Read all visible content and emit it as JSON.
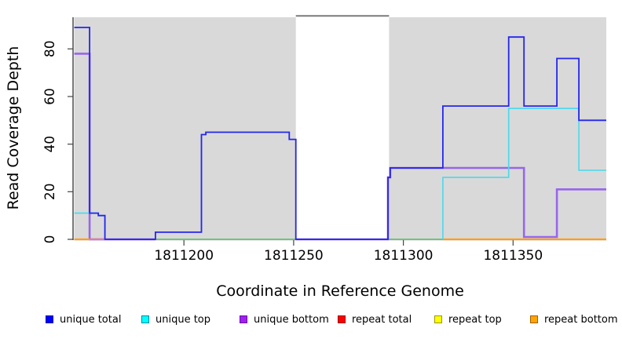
{
  "chart_data": {
    "type": "line",
    "variant": "step-coverage-plot",
    "xlabel": "Coordinate in Reference Genome",
    "ylabel": "Read Coverage Depth",
    "xlim": [
      1811150,
      1811392.5
    ],
    "ylim": [
      0,
      93.3
    ],
    "x_ticks": [
      1811200,
      1811250,
      1811300,
      1811350
    ],
    "y_ticks": [
      0,
      20,
      40,
      60,
      80
    ],
    "grid": false,
    "legend_position": "bottom",
    "background": {
      "plot_fill": "#D9D9D9",
      "page_fill": "#FFFFFF"
    },
    "masked_region": {
      "x_start": 1811251,
      "x_end": 1811293.5,
      "fill": "#FFFFFF",
      "top_edge_color": "#7A7A7A"
    },
    "legend": [
      {
        "label": "unique total",
        "fill": "#0000FF",
        "border": "#0000A0"
      },
      {
        "label": "unique top",
        "fill": "#00FFFF",
        "border": "#00889A"
      },
      {
        "label": "unique bottom",
        "fill": "#A020F0",
        "border": "#6A0DAD"
      },
      {
        "label": "repeat total",
        "fill": "#FF0000",
        "border": "#990000"
      },
      {
        "label": "repeat top",
        "fill": "#FFFF00",
        "border": "#999900"
      },
      {
        "label": "repeat bottom",
        "fill": "#FFA500",
        "border": "#A06000"
      }
    ],
    "series": [
      {
        "name": "zero overlap line",
        "color": "#6FC47E",
        "width": 2,
        "segments": [
          [
            [
              1811187,
              0
            ],
            [
              1811318,
              0
            ]
          ]
        ]
      },
      {
        "name": "unique bottom",
        "color": "#9766EA",
        "width": 2.6,
        "segments": [
          [
            [
              1811150,
              78
            ],
            [
              1811157,
              78
            ],
            [
              1811157,
              0
            ],
            [
              1811187,
              0
            ]
          ],
          [
            [
              1811251,
              0
            ],
            [
              1811293,
              0
            ],
            [
              1811293,
              26
            ],
            [
              1811294,
              26
            ],
            [
              1811294,
              30
            ],
            [
              1811355,
              30
            ],
            [
              1811355,
              1
            ],
            [
              1811370,
              1
            ],
            [
              1811370,
              21
            ],
            [
              1811392.5,
              21
            ]
          ]
        ]
      },
      {
        "name": "repeat total",
        "color": "#EE7A87",
        "width": 2,
        "segments": [
          [
            [
              1811157,
              0
            ],
            [
              1811166,
              0
            ]
          ]
        ]
      },
      {
        "name": "repeat top",
        "color": "#FFFF00",
        "width": 2,
        "segments": []
      },
      {
        "name": "repeat bottom",
        "color": "#FF9E18",
        "width": 2.2,
        "segments": [
          [
            [
              1811150,
              0
            ],
            [
              1811157,
              0
            ]
          ],
          [
            [
              1811318,
              0
            ],
            [
              1811392.5,
              0
            ]
          ]
        ]
      },
      {
        "name": "unique top",
        "color": "#49D9EC",
        "width": 1.6,
        "segments": [
          [
            [
              1811150,
              11
            ],
            [
              1811161,
              11
            ],
            [
              1811161,
              10
            ],
            [
              1811164,
              10
            ],
            [
              1811164,
              0
            ]
          ],
          [
            [
              1811318,
              0
            ],
            [
              1811318,
              26
            ],
            [
              1811348,
              26
            ],
            [
              1811348,
              55
            ],
            [
              1811380,
              55
            ],
            [
              1811380,
              29
            ],
            [
              1811392.5,
              29
            ]
          ]
        ]
      },
      {
        "name": "unique total",
        "color": "#2525EE",
        "width": 1.8,
        "segments": [
          [
            [
              1811150,
              89
            ],
            [
              1811157,
              89
            ],
            [
              1811157,
              11
            ],
            [
              1811161,
              11
            ],
            [
              1811161,
              10
            ],
            [
              1811164,
              10
            ],
            [
              1811164,
              0
            ],
            [
              1811187,
              0
            ],
            [
              1811187,
              3
            ],
            [
              1811208,
              3
            ],
            [
              1811208,
              44
            ],
            [
              1811210,
              44
            ],
            [
              1811210,
              45
            ],
            [
              1811248,
              45
            ],
            [
              1811248,
              42
            ],
            [
              1811251,
              42
            ],
            [
              1811251,
              0
            ],
            [
              1811293,
              0
            ],
            [
              1811293,
              26
            ],
            [
              1811294,
              26
            ],
            [
              1811294,
              30
            ],
            [
              1811318,
              30
            ],
            [
              1811318,
              56
            ],
            [
              1811348,
              56
            ],
            [
              1811348,
              85
            ],
            [
              1811355,
              85
            ],
            [
              1811355,
              56
            ],
            [
              1811370,
              56
            ],
            [
              1811370,
              76
            ],
            [
              1811380,
              76
            ],
            [
              1811380,
              50
            ],
            [
              1811392.5,
              50
            ]
          ]
        ]
      }
    ]
  }
}
